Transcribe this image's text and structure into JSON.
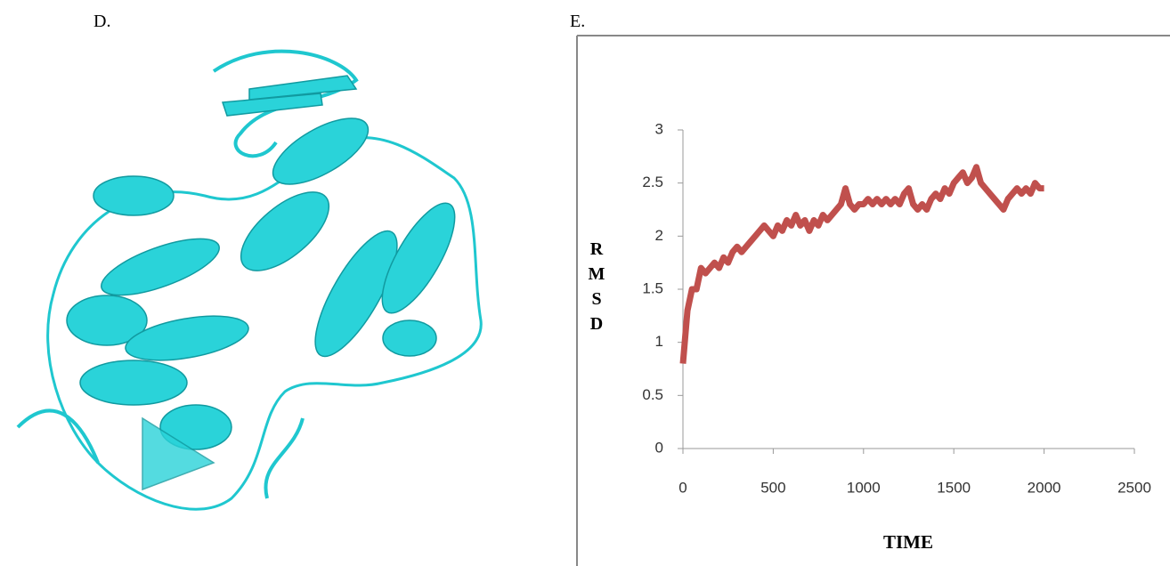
{
  "panel_labels": {
    "left": "D.",
    "right": "E."
  },
  "chart_data": {
    "type": "line",
    "xlabel": "TIME",
    "ylabel": "RMSD",
    "x": [
      0,
      25,
      50,
      75,
      100,
      125,
      150,
      175,
      200,
      225,
      250,
      275,
      300,
      325,
      350,
      375,
      400,
      425,
      450,
      475,
      500,
      525,
      550,
      575,
      600,
      625,
      650,
      675,
      700,
      725,
      750,
      775,
      800,
      825,
      850,
      875,
      900,
      925,
      950,
      975,
      1000,
      1025,
      1050,
      1075,
      1100,
      1125,
      1150,
      1175,
      1200,
      1225,
      1250,
      1275,
      1300,
      1325,
      1350,
      1375,
      1400,
      1425,
      1450,
      1475,
      1500,
      1525,
      1550,
      1575,
      1600,
      1625,
      1650,
      1675,
      1700,
      1725,
      1750,
      1775,
      1800,
      1825,
      1850,
      1875,
      1900,
      1925,
      1950,
      1975,
      2000
    ],
    "series": [
      {
        "name": "RMSD",
        "color": "#c0504d",
        "values": [
          0.8,
          1.3,
          1.5,
          1.5,
          1.7,
          1.65,
          1.7,
          1.75,
          1.7,
          1.8,
          1.75,
          1.85,
          1.9,
          1.85,
          1.9,
          1.95,
          2.0,
          2.05,
          2.1,
          2.05,
          2.0,
          2.1,
          2.05,
          2.15,
          2.1,
          2.2,
          2.1,
          2.15,
          2.05,
          2.15,
          2.1,
          2.2,
          2.15,
          2.2,
          2.25,
          2.3,
          2.45,
          2.3,
          2.25,
          2.3,
          2.3,
          2.35,
          2.3,
          2.35,
          2.3,
          2.35,
          2.3,
          2.35,
          2.3,
          2.4,
          2.45,
          2.3,
          2.25,
          2.3,
          2.25,
          2.35,
          2.4,
          2.35,
          2.45,
          2.4,
          2.5,
          2.55,
          2.6,
          2.5,
          2.55,
          2.65,
          2.5,
          2.45,
          2.4,
          2.35,
          2.3,
          2.25,
          2.35,
          2.4,
          2.45,
          2.4,
          2.45,
          2.4,
          2.5,
          2.45,
          2.45
        ]
      }
    ],
    "xlim": [
      0,
      2500
    ],
    "xticks": [
      0,
      500,
      1000,
      1500,
      2000,
      2500
    ],
    "ylim": [
      0,
      3
    ],
    "yticks": [
      0,
      0.5,
      1,
      1.5,
      2,
      2.5,
      3
    ],
    "grid": false
  }
}
